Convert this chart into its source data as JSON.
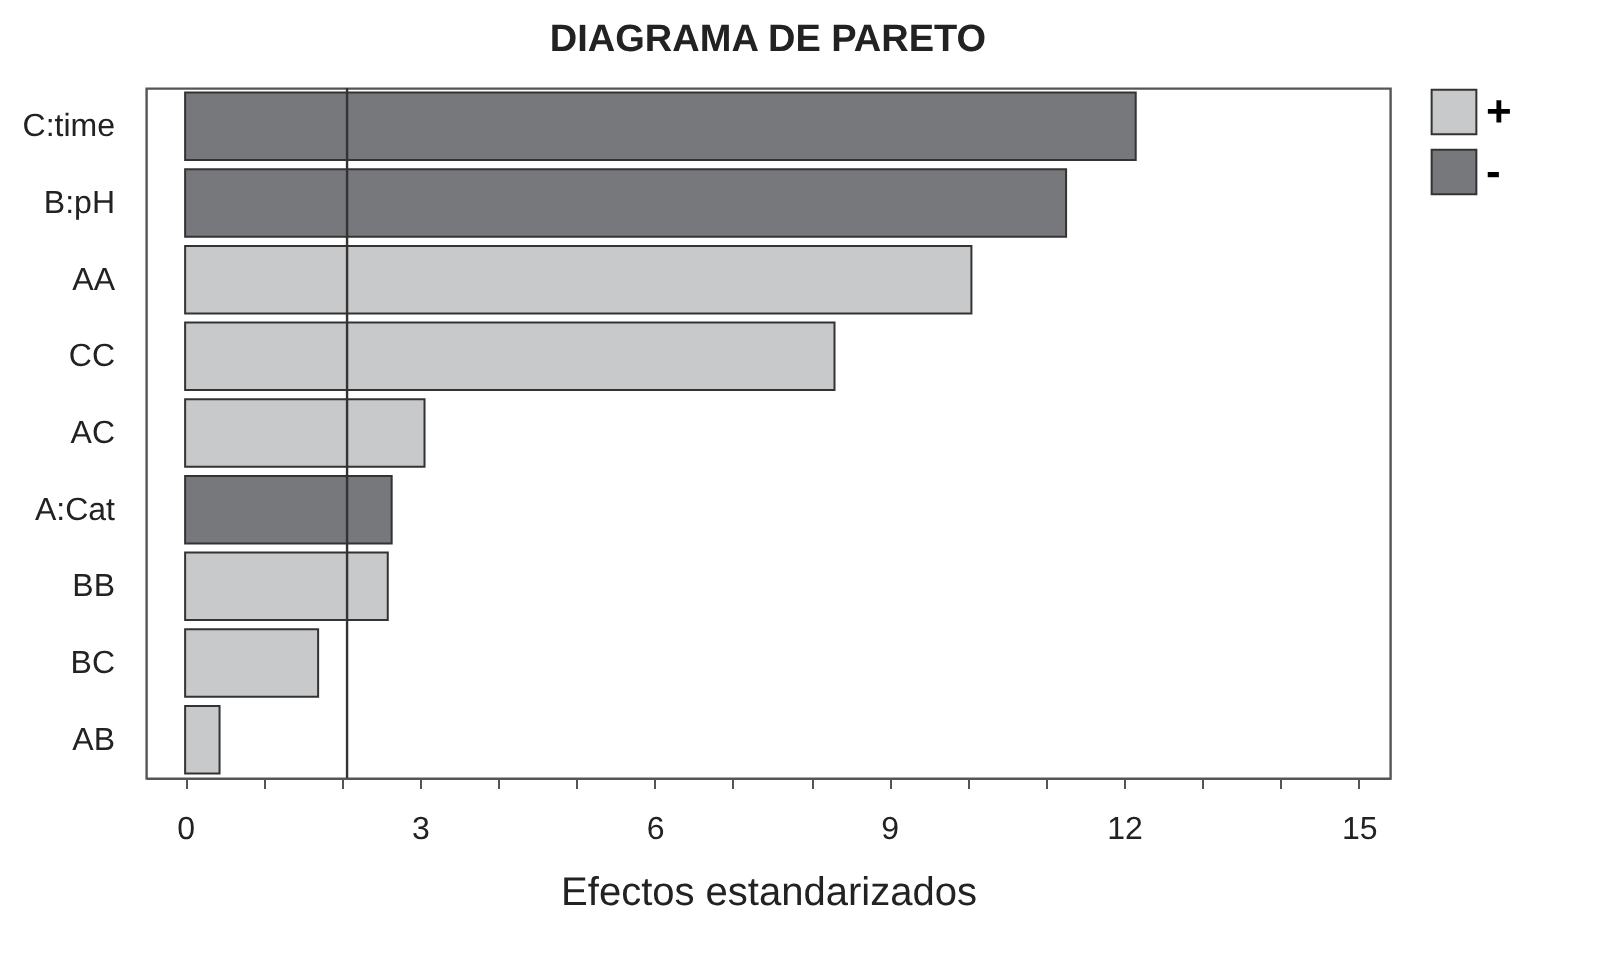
{
  "chart_data": {
    "type": "bar",
    "orientation": "horizontal",
    "title": "DIAGRAMA DE PARETO",
    "xlabel": "Efectos estandarizados",
    "categories": [
      "C:time",
      "B:pH",
      "AA",
      "CC",
      "AC",
      "A:Cat",
      "BB",
      "BC",
      "AB"
    ],
    "series": [
      {
        "name": "+",
        "color": "#c8c9cb",
        "values": [
          null,
          null,
          10.05,
          8.3,
          3.06,
          null,
          2.59,
          1.7,
          0.44
        ]
      },
      {
        "name": "-",
        "color": "#77787c",
        "values": [
          12.15,
          11.26,
          null,
          null,
          null,
          2.64,
          null,
          null,
          null
        ]
      }
    ],
    "xlim": [
      -0.5,
      15.4
    ],
    "xticks": [
      0,
      {
        "value": 1,
        "label": null
      },
      {
        "value": 2,
        "label": null
      },
      3,
      {
        "value": 4,
        "label": null
      },
      {
        "value": 5,
        "label": null
      },
      6,
      {
        "value": 7,
        "label": null
      },
      {
        "value": 8,
        "label": null
      },
      9,
      {
        "value": 10,
        "label": null
      },
      {
        "value": 11,
        "label": null
      },
      12,
      {
        "value": 13,
        "label": null
      },
      {
        "value": 14,
        "label": null
      },
      15
    ],
    "ref_lines": [
      {
        "axis": "x",
        "value": 2.07,
        "color": "#333333"
      }
    ],
    "grid": false,
    "legend": "top right"
  }
}
